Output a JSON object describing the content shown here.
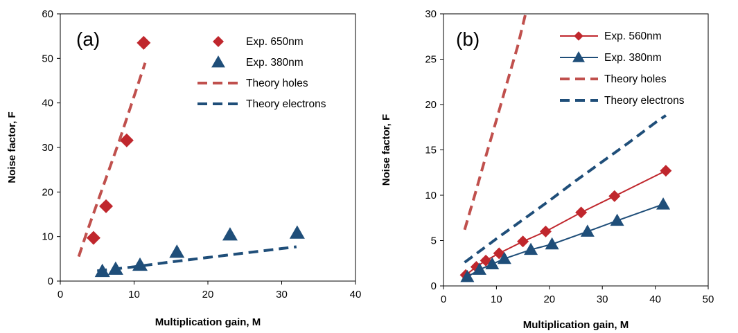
{
  "colors": {
    "red": "#C0272D",
    "red_dashed": "#C0504D",
    "blue": "#1F4E79",
    "blue_dashed": "#1F4E79",
    "axis": "#000000"
  },
  "chart_data": [
    {
      "type": "scatter",
      "panel_label": "(a)",
      "xlabel": "Multiplication gain, M",
      "ylabel": "Noise factor, F",
      "xlim": [
        0,
        40
      ],
      "ylim": [
        0,
        60
      ],
      "x_ticks": [
        0,
        10,
        20,
        30,
        40
      ],
      "y_ticks": [
        0,
        10,
        20,
        30,
        40,
        50,
        60
      ],
      "grid": false,
      "legend_position": "top-right",
      "series": [
        {
          "name": "Exp. 650nm",
          "style": "markers",
          "marker": "diamond",
          "color": "#C0272D",
          "x": [
            4.5,
            6.2,
            9.0,
            11.3
          ],
          "y": [
            9.7,
            16.8,
            31.6,
            53.5
          ]
        },
        {
          "name": "Exp. 380nm",
          "style": "markers",
          "marker": "triangle",
          "color": "#1F4E79",
          "x": [
            5.7,
            7.5,
            10.8,
            15.8,
            23.0,
            32.1
          ],
          "y": [
            2.2,
            2.7,
            3.6,
            6.5,
            10.4,
            10.8
          ]
        },
        {
          "name": "Theory holes",
          "style": "dashed",
          "color": "#C0504D",
          "x": [
            2.5,
            3.5,
            5,
            6.5,
            8,
            9.5,
            11.5
          ],
          "y": [
            5.5,
            10.5,
            17.5,
            24.5,
            31.5,
            39,
            49
          ]
        },
        {
          "name": "Theory electrons",
          "style": "dashed",
          "color": "#1F4E79",
          "x": [
            5,
            10,
            15,
            20,
            25,
            30,
            32
          ],
          "y": [
            2.3,
            3.2,
            4.3,
            5.3,
            6.3,
            7.3,
            7.7
          ]
        }
      ]
    },
    {
      "type": "line",
      "panel_label": "(b)",
      "xlabel": "Multiplication gain, M",
      "ylabel": "Noise factor, F",
      "xlim": [
        0,
        50
      ],
      "ylim": [
        0,
        30
      ],
      "x_ticks": [
        0,
        10,
        20,
        30,
        40,
        50
      ],
      "y_ticks": [
        0,
        5,
        10,
        15,
        20,
        25,
        30
      ],
      "grid": false,
      "legend_position": "top-center",
      "series": [
        {
          "name": "Exp. 560nm",
          "style": "line-markers",
          "marker": "diamond",
          "color": "#C0272D",
          "x": [
            4.2,
            6.2,
            8.0,
            10.5,
            15.0,
            19.3,
            26.0,
            32.3,
            42.0
          ],
          "y": [
            1.2,
            2.1,
            2.8,
            3.6,
            4.9,
            6.0,
            8.1,
            9.9,
            12.7
          ]
        },
        {
          "name": "Exp. 380nm",
          "style": "line-markers",
          "marker": "triangle",
          "color": "#1F4E79",
          "x": [
            4.5,
            6.8,
            9.2,
            11.5,
            16.5,
            20.5,
            27.2,
            32.8,
            41.5
          ],
          "y": [
            1.0,
            1.8,
            2.4,
            3.0,
            4.0,
            4.6,
            6.0,
            7.2,
            9.0
          ]
        },
        {
          "name": "Theory holes",
          "style": "dashed",
          "color": "#C0504D",
          "x": [
            4,
            6,
            8,
            10,
            12,
            14,
            15.5
          ],
          "y": [
            6.2,
            10.2,
            14.3,
            18.3,
            22.4,
            26.4,
            30
          ]
        },
        {
          "name": "Theory electrons",
          "style": "dashed",
          "color": "#1F4E79",
          "x": [
            4,
            10,
            15,
            20,
            25,
            30,
            35,
            40,
            42
          ],
          "y": [
            2.6,
            5.2,
            7.3,
            9.4,
            11.6,
            13.7,
            15.8,
            18.0,
            18.8
          ]
        }
      ]
    }
  ]
}
